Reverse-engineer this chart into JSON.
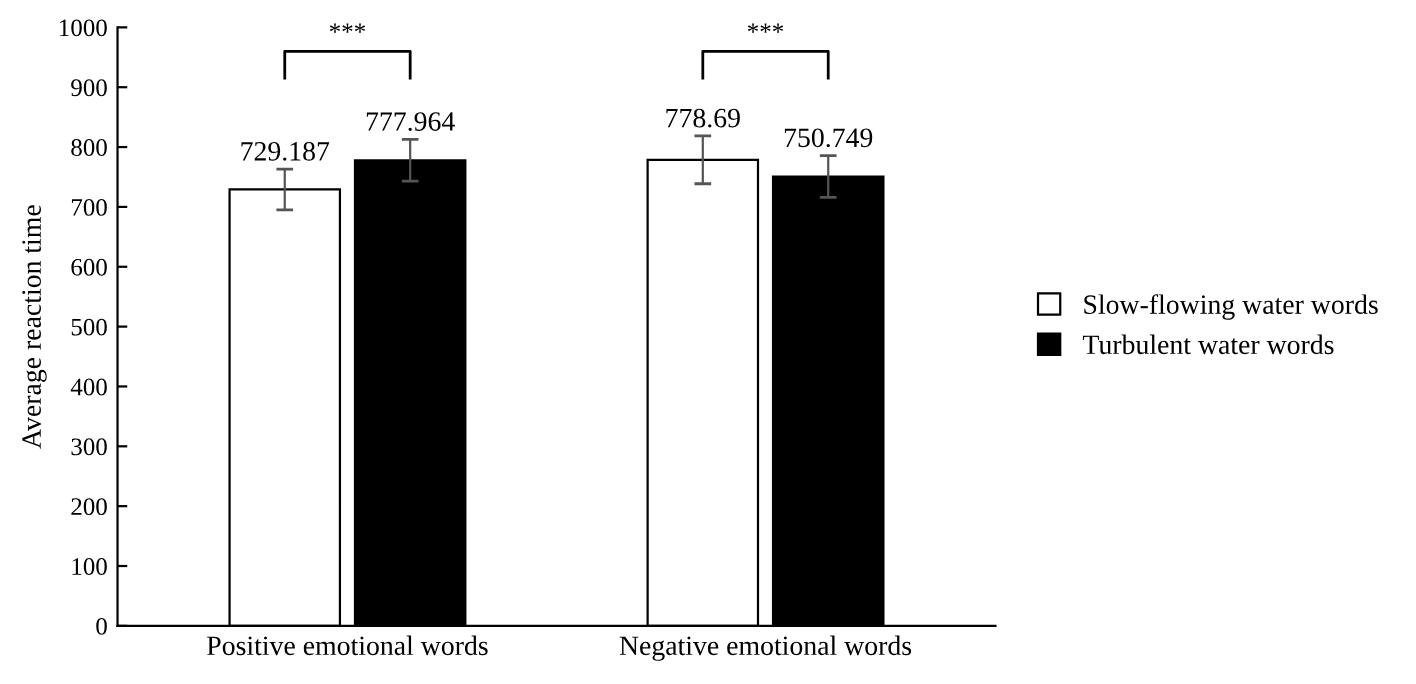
{
  "chart_data": {
    "type": "bar",
    "ylabel": "Average reaction time",
    "categories": [
      "Positive emotional words",
      "Negative emotional words"
    ],
    "series": [
      {
        "name": "Slow-flowing water words",
        "color": "#ffffff",
        "values": [
          729.187,
          778.69
        ],
        "errors": [
          34,
          40
        ]
      },
      {
        "name": "Turbulent water words",
        "color": "#000000",
        "values": [
          777.964,
          750.749
        ],
        "errors": [
          35,
          35
        ]
      }
    ],
    "ylim": [
      0,
      1000
    ],
    "yticks": [
      0,
      100,
      200,
      300,
      400,
      500,
      600,
      700,
      800,
      900,
      1000
    ],
    "data_labels": true,
    "legend": "right",
    "grid": false,
    "annotations": [
      "***",
      "***"
    ]
  }
}
